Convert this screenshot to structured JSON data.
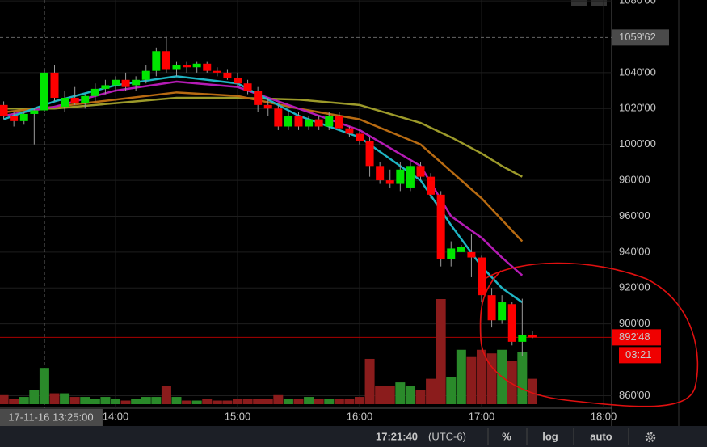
{
  "chart_data": {
    "type": "candlestick",
    "x": [
      "13:05",
      "13:10",
      "13:15",
      "13:20",
      "13:25",
      "13:30",
      "13:35",
      "13:40",
      "13:45",
      "13:50",
      "13:55",
      "14:00",
      "14:05",
      "14:10",
      "14:15",
      "14:20",
      "14:25",
      "14:30",
      "14:35",
      "14:40",
      "14:45",
      "14:50",
      "14:55",
      "15:00",
      "15:05",
      "15:10",
      "15:15",
      "15:20",
      "15:25",
      "15:30",
      "15:35",
      "15:40",
      "15:45",
      "15:50",
      "15:55",
      "16:00",
      "16:05",
      "16:10",
      "16:15",
      "16:20",
      "16:25",
      "16:30",
      "16:35",
      "16:40",
      "16:45",
      "16:50",
      "16:55",
      "17:00",
      "17:05",
      "17:10",
      "17:15",
      "17:20",
      "17:25"
    ],
    "open": [
      1022,
      1016,
      1013,
      1017,
      1019,
      1040,
      1021,
      1026,
      1023,
      1027,
      1031,
      1033,
      1036,
      1033,
      1036,
      1041,
      1052,
      1042,
      1044,
      1043,
      1045,
      1041,
      1040,
      1037,
      1034,
      1030,
      1022,
      1020,
      1010,
      1016,
      1010,
      1014,
      1010,
      1016,
      1009,
      1006,
      1002,
      988,
      980,
      978,
      976,
      988,
      982,
      972,
      936,
      940,
      940,
      937,
      916,
      902,
      911,
      890,
      894
    ],
    "high": [
      1024,
      1018,
      1018,
      1020,
      1042,
      1044,
      1030,
      1032,
      1028,
      1034,
      1036,
      1038,
      1040,
      1038,
      1044,
      1054,
      1060,
      1046,
      1046,
      1046,
      1046,
      1043,
      1042,
      1040,
      1036,
      1032,
      1026,
      1022,
      1018,
      1018,
      1016,
      1016,
      1018,
      1018,
      1010,
      1008,
      1004,
      990,
      986,
      990,
      990,
      990,
      984,
      974,
      946,
      944,
      950,
      938,
      920,
      916,
      912,
      914,
      896
    ],
    "low": [
      1014,
      1010,
      1011,
      1000,
      1018,
      1024,
      1018,
      1022,
      1020,
      1024,
      1028,
      1030,
      1030,
      1030,
      1034,
      1038,
      1040,
      1038,
      1040,
      1040,
      1040,
      1038,
      1036,
      1032,
      1028,
      1018,
      1016,
      1008,
      1008,
      1008,
      1008,
      1008,
      1008,
      1008,
      1004,
      1000,
      982,
      978,
      976,
      974,
      974,
      980,
      970,
      932,
      932,
      940,
      926,
      912,
      898,
      900,
      888,
      882,
      892
    ],
    "close": [
      1016,
      1013,
      1017,
      1019,
      1040,
      1026,
      1026,
      1023,
      1027,
      1031,
      1033,
      1036,
      1032,
      1036,
      1041,
      1052,
      1042,
      1044,
      1043,
      1045,
      1041,
      1040,
      1037,
      1034,
      1030,
      1022,
      1020,
      1010,
      1016,
      1010,
      1014,
      1010,
      1016,
      1009,
      1006,
      1002,
      988,
      980,
      978,
      986,
      988,
      982,
      972,
      936,
      942,
      943,
      937,
      916,
      902,
      912,
      890,
      894,
      892.48
    ],
    "volume": [
      5,
      3,
      4,
      8,
      20,
      6,
      6,
      4,
      4,
      3,
      4,
      3,
      2,
      3,
      4,
      4,
      10,
      4,
      2,
      2,
      3,
      2,
      2,
      3,
      3,
      3,
      3,
      5,
      3,
      3,
      4,
      3,
      3,
      3,
      3,
      4,
      25,
      10,
      10,
      12,
      10,
      8,
      14,
      58,
      15,
      30,
      26,
      30,
      28,
      30,
      24,
      29,
      14
    ],
    "up_color": "#00e600",
    "down_color": "#ff0000",
    "vol_up_color": "#2a8a2a",
    "vol_down_color": "#8b1c1c",
    "lines": [
      {
        "color": "#9c9a2a",
        "x": [
          "13:05",
          "13:30",
          "14:00",
          "14:30",
          "15:00",
          "15:30",
          "16:00",
          "16:30",
          "16:45",
          "17:00",
          "17:10",
          "17:20"
        ],
        "values": [
          1020,
          1020,
          1023,
          1026,
          1026,
          1025,
          1022,
          1012,
          1004,
          995,
          988,
          982
        ]
      },
      {
        "color": "#b86b12",
        "x": [
          "13:05",
          "13:30",
          "14:00",
          "14:30",
          "15:00",
          "15:30",
          "16:00",
          "16:30",
          "16:45",
          "17:00",
          "17:10",
          "17:20"
        ],
        "values": [
          1018,
          1021,
          1025,
          1029,
          1027,
          1020,
          1014,
          1000,
          985,
          970,
          958,
          946
        ]
      },
      {
        "color": "#b51bb5",
        "x": [
          "13:05",
          "13:30",
          "14:00",
          "14:30",
          "15:00",
          "15:30",
          "16:00",
          "16:30",
          "16:45",
          "17:00",
          "17:10",
          "17:20"
        ],
        "values": [
          1016,
          1021,
          1030,
          1035,
          1032,
          1020,
          1008,
          988,
          960,
          948,
          937,
          927
        ]
      },
      {
        "color": "#1fb5c4",
        "x": [
          "13:05",
          "13:30",
          "14:00",
          "14:30",
          "15:00",
          "15:30",
          "16:00",
          "16:30",
          "16:45",
          "17:00",
          "17:10",
          "17:20"
        ],
        "values": [
          1014,
          1024,
          1033,
          1038,
          1034,
          1016,
          1004,
          980,
          955,
          932,
          920,
          912
        ]
      }
    ],
    "ylim": [
      853,
      1080.5
    ],
    "yticks": [
      {
        "value": 1080,
        "label": "1080'00"
      },
      {
        "value": 1040,
        "label": "1040'00"
      },
      {
        "value": 1020,
        "label": "1020'00"
      },
      {
        "value": 1000,
        "label": "1000'00"
      },
      {
        "value": 980,
        "label": "980'00"
      },
      {
        "value": 960,
        "label": "960'00"
      },
      {
        "value": 940,
        "label": "940'00"
      },
      {
        "value": 920,
        "label": "920'00"
      },
      {
        "value": 900,
        "label": "900'00"
      },
      {
        "value": 860,
        "label": "860'00"
      }
    ],
    "xticks": [
      "14:00",
      "15:00",
      "16:00",
      "17:00",
      "18:00"
    ],
    "high_marker": {
      "value": 1059.62,
      "label": "1059'62"
    },
    "last_marker": {
      "value": 892.48,
      "label": "892'48"
    },
    "countdown": "03:21",
    "crosshair": {
      "x": "13:25",
      "label": "17-11-16 13:25:00"
    },
    "grid": true
  },
  "toolbar": {
    "time": "17:21:40",
    "timezone": "(UTC-6)",
    "percent": "%",
    "log": "log",
    "auto": "auto"
  }
}
